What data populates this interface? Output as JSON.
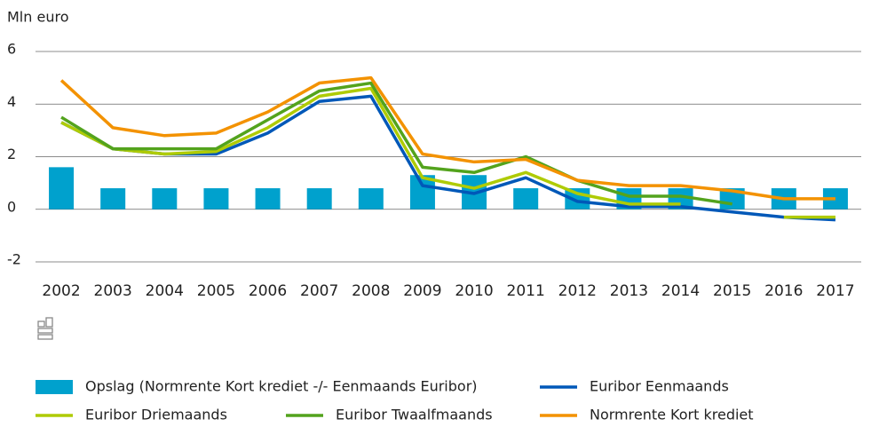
{
  "chart_data": {
    "type": "combo",
    "y_axis_label": "Mln euro",
    "categories": [
      "2002",
      "2003",
      "2004",
      "2005",
      "2006",
      "2007",
      "2008",
      "2009",
      "2010",
      "2011",
      "2012",
      "2013",
      "2014",
      "2015",
      "2016",
      "2017"
    ],
    "series": [
      {
        "name": "Opslag (Normrente Kort krediet -/- Eenmaands Euribor)",
        "type": "bar",
        "color": "#00a1cd",
        "values": [
          1.6,
          0.8,
          0.8,
          0.8,
          0.8,
          0.8,
          0.8,
          1.3,
          1.3,
          0.8,
          0.8,
          0.8,
          0.8,
          0.8,
          0.8,
          0.8
        ]
      },
      {
        "name": "Euribor Eenmaands",
        "type": "line",
        "color": "#0058b8",
        "values": [
          3.3,
          2.3,
          2.1,
          2.1,
          2.9,
          4.1,
          4.3,
          0.9,
          0.6,
          1.2,
          0.3,
          0.1,
          0.1,
          -0.1,
          -0.3,
          -0.4
        ]
      },
      {
        "name": "Euribor Driemaands",
        "type": "line",
        "color": "#afcb05",
        "values": [
          3.3,
          2.3,
          2.1,
          2.2,
          3.1,
          4.3,
          4.6,
          1.2,
          0.8,
          1.4,
          0.6,
          0.2,
          0.2,
          null,
          -0.3,
          -0.3
        ]
      },
      {
        "name": "Euribor Twaalfmaands",
        "type": "line",
        "color": "#53a31d",
        "values": [
          3.5,
          2.3,
          2.3,
          2.3,
          3.4,
          4.5,
          4.8,
          1.6,
          1.4,
          2.0,
          1.1,
          0.5,
          0.5,
          0.2,
          null,
          null
        ]
      },
      {
        "name": "Normrente Kort krediet",
        "type": "line",
        "color": "#f39200",
        "values": [
          4.9,
          3.1,
          2.8,
          2.9,
          3.7,
          4.8,
          5.0,
          2.1,
          1.8,
          1.9,
          1.1,
          0.9,
          0.9,
          0.7,
          0.4,
          0.4
        ]
      }
    ],
    "ylim": [
      -2,
      6
    ],
    "yticks": [
      -2,
      0,
      2,
      4,
      6
    ],
    "grid": true
  }
}
